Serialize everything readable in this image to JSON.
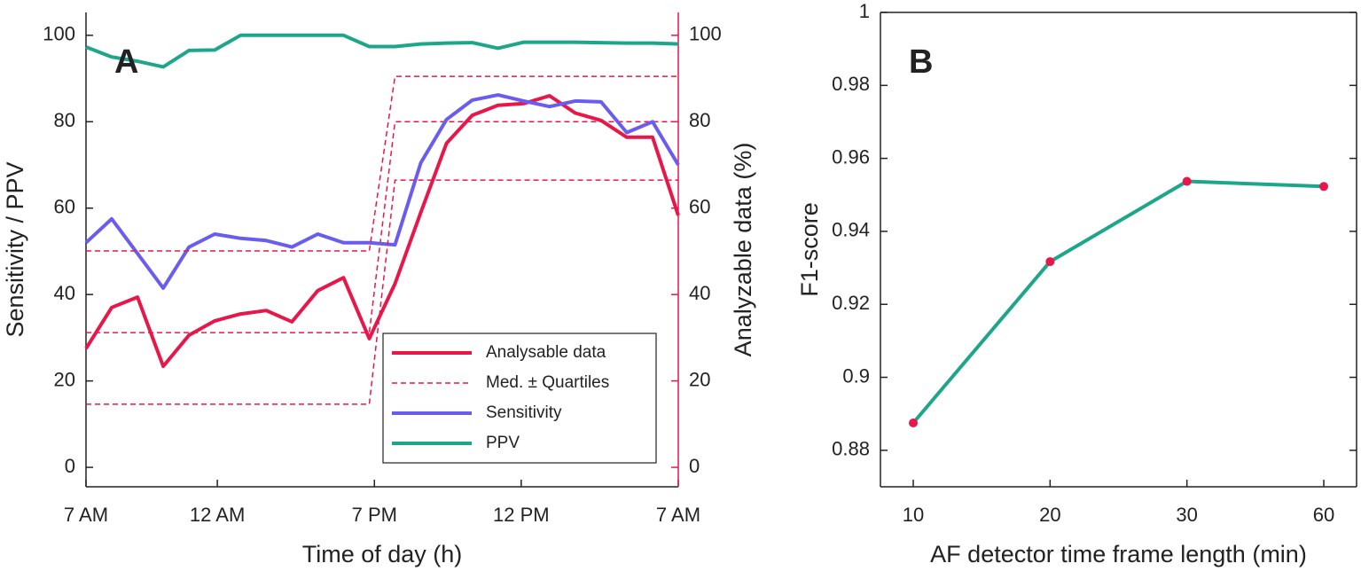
{
  "chart_data": [
    {
      "type": "line",
      "annotation": "A",
      "xlabel": "Time of day (h)",
      "ylabel": "Sensitivity / PPV",
      "y2label": "Analyzable data (%)",
      "x": [
        0,
        1,
        2,
        3,
        4,
        5,
        6,
        7,
        8,
        9,
        10,
        11,
        12,
        13,
        14,
        15,
        16,
        17,
        18,
        19,
        20,
        21,
        22,
        23
      ],
      "xlim": [
        0,
        23
      ],
      "xticks": [
        {
          "value": 0,
          "label": "7 AM"
        },
        {
          "value": 5.1,
          "label": "12 AM"
        },
        {
          "value": 11.2,
          "label": "7 PM"
        },
        {
          "value": 16.9,
          "label": "12 PM"
        },
        {
          "value": 23,
          "label": "7 AM"
        }
      ],
      "ylim": [
        -4.5,
        105.3
      ],
      "yticks": [
        0,
        20,
        40,
        60,
        80,
        100
      ],
      "y2lim": [
        -4.5,
        105.3
      ],
      "y2ticks": [
        0,
        20,
        40,
        60,
        80,
        100
      ],
      "y2color": "#e8174a",
      "legend": "lower right",
      "series": [
        {
          "name": "Analysable data",
          "color": "#e8174a",
          "axis": "y2",
          "values": [
            27.5,
            37,
            39.4,
            23.4,
            30.6,
            33.9,
            35.5,
            36.3,
            33.7,
            40.9,
            43.9,
            29.8,
            42.5,
            59,
            75,
            81.5,
            83.8,
            84.2,
            86,
            82,
            80.3,
            76.4,
            76.4,
            58.3
          ]
        },
        {
          "name": "Med. ± Quartiles",
          "color": "#e8174a",
          "axis": "y2",
          "dashed": true,
          "values": [
            31.2,
            31.2,
            31.2,
            31.2,
            31.2,
            31.2,
            31.2,
            31.2,
            31.2,
            31.2,
            31.2,
            31.2,
            80,
            80,
            80,
            80,
            80,
            80,
            80,
            80,
            80,
            80,
            80,
            80
          ]
        },
        {
          "name": "Sensitivity",
          "color": "#6b5cf0",
          "values": [
            52,
            57.5,
            49.5,
            41.5,
            51,
            54,
            53,
            52.5,
            51,
            54,
            52,
            52,
            51.5,
            70.5,
            80.5,
            85,
            86.2,
            84.8,
            83.5,
            84.8,
            84.6,
            77.5,
            80,
            70
          ]
        },
        {
          "name": "PPV",
          "color": "#1ea68a",
          "values": [
            97.3,
            95,
            94,
            92.7,
            96.5,
            96.6,
            100,
            100,
            100,
            100,
            100,
            97.4,
            97.4,
            98,
            98.2,
            98.3,
            97,
            98.4,
            98.4,
            98.4,
            98.3,
            98.2,
            98.2,
            98
          ]
        },
        {
          "color": "#e8174a",
          "axis": "y2",
          "dashed": true,
          "values": [
            14.6,
            14.6,
            14.6,
            14.6,
            14.6,
            14.6,
            14.6,
            14.6,
            14.6,
            14.6,
            14.6,
            14.6,
            66.5,
            66.5,
            66.5,
            66.5,
            66.5,
            66.5,
            66.5,
            66.5,
            66.5,
            66.5,
            66.5,
            66.5
          ]
        },
        {
          "color": "#e8174a",
          "axis": "y2",
          "dashed": true,
          "values": [
            50.1,
            50.1,
            50.1,
            50.1,
            50.1,
            50.1,
            50.1,
            50.1,
            50.1,
            50.1,
            50.1,
            50.1,
            90.5,
            90.5,
            90.5,
            90.5,
            90.5,
            90.5,
            90.5,
            90.5,
            90.5,
            90.5,
            90.5,
            90.5
          ]
        }
      ]
    },
    {
      "type": "line",
      "annotation": "B",
      "xlabel": "AF detector time frame length (min)",
      "ylabel": "F1-score",
      "categories": [
        "10",
        "20",
        "30",
        "60"
      ],
      "ylim": [
        0.87,
        1
      ],
      "yticks": [
        0.88,
        0.9,
        0.92,
        0.94,
        0.96,
        0.98,
        1
      ],
      "series": [
        {
          "color": "#1ea68a",
          "marker_color": "#e8174a",
          "values": [
            0.8875,
            0.9317,
            0.9537,
            0.9523
          ]
        }
      ]
    }
  ]
}
